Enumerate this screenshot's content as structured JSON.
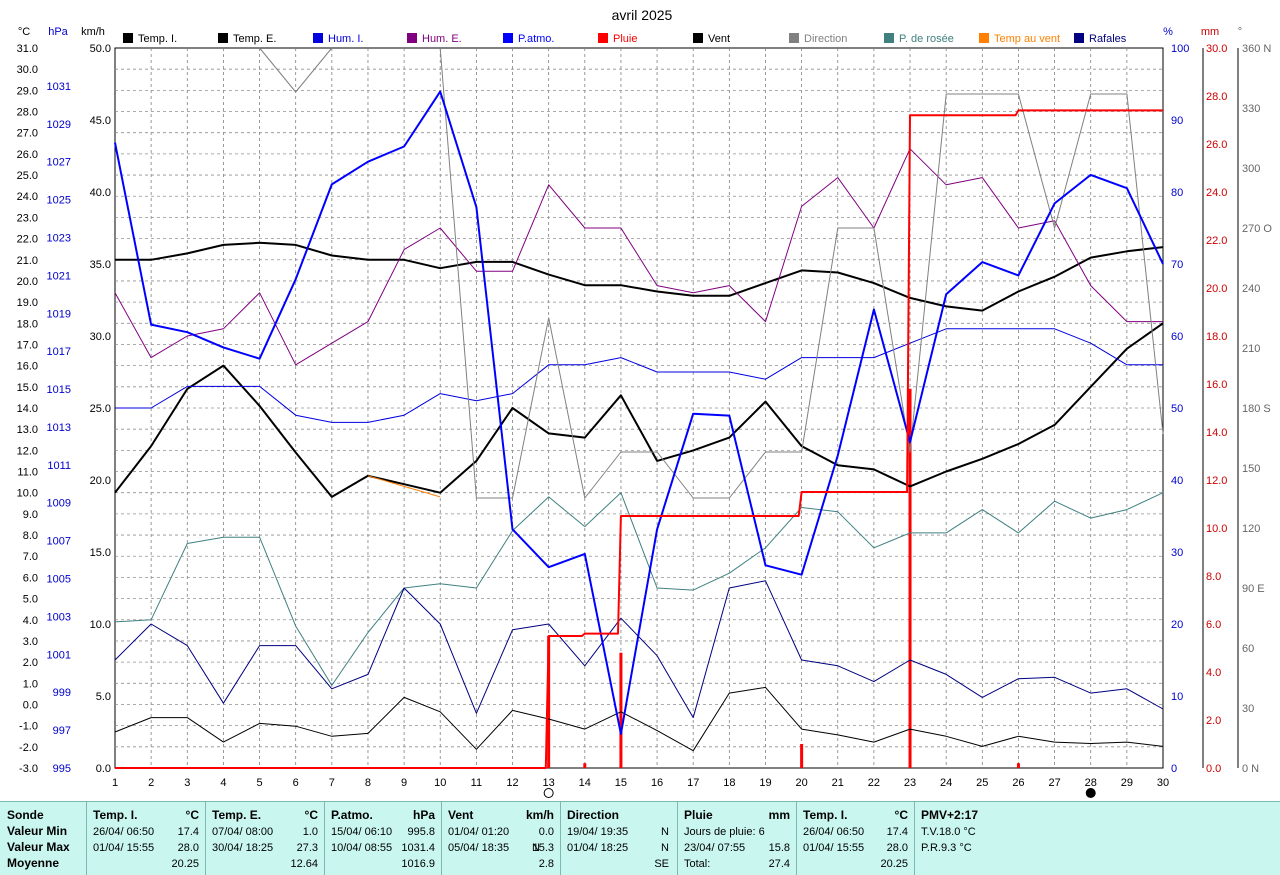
{
  "chart_data": {
    "type": "line",
    "title": "avril 2025",
    "x": [
      1,
      2,
      3,
      4,
      5,
      6,
      7,
      8,
      9,
      10,
      11,
      12,
      13,
      14,
      15,
      16,
      17,
      18,
      19,
      20,
      21,
      22,
      23,
      24,
      25,
      26,
      27,
      28,
      29,
      30
    ],
    "axes": {
      "temp": {
        "unit": "°C",
        "range": [
          -3.0,
          31.0
        ],
        "ticks": [
          "31.0",
          "30.0",
          "29.0",
          "28.0",
          "27.0",
          "26.0",
          "25.0",
          "24.0",
          "23.0",
          "22.0",
          "21.0",
          "20.0",
          "19.0",
          "18.0",
          "17.0",
          "16.0",
          "15.0",
          "14.0",
          "13.0",
          "12.0",
          "11.0",
          "10.0",
          "9.0",
          "8.0",
          "7.0",
          "6.0",
          "5.0",
          "4.0",
          "3.0",
          "2.0",
          "1.0",
          "0.0",
          "-1.0",
          "-2.0",
          "-3.0"
        ]
      },
      "pressure": {
        "unit": "hPa",
        "range": [
          995,
          1033
        ],
        "ticks": [
          "1031",
          "1029",
          "1027",
          "1025",
          "1023",
          "1021",
          "1019",
          "1017",
          "1015",
          "1013",
          "1011",
          "1009",
          "1007",
          "1005",
          "1003",
          "1001",
          "999",
          "997",
          "995"
        ]
      },
      "wind": {
        "unit": "km/h",
        "range": [
          0,
          50
        ],
        "ticks": [
          "50.0",
          "45.0",
          "40.0",
          "35.0",
          "30.0",
          "25.0",
          "20.0",
          "15.0",
          "10.0",
          "5.0",
          "0.0"
        ]
      },
      "humidity": {
        "unit": "%",
        "range": [
          0,
          100
        ],
        "ticks": [
          "100",
          "90",
          "80",
          "70",
          "60",
          "50",
          "40",
          "30",
          "20",
          "10",
          "0"
        ]
      },
      "rain": {
        "unit": "mm",
        "range": [
          0,
          30
        ],
        "ticks": [
          "30.0",
          "28.0",
          "26.0",
          "24.0",
          "22.0",
          "20.0",
          "18.0",
          "16.0",
          "14.0",
          "12.0",
          "10.0",
          "8.0",
          "6.0",
          "4.0",
          "2.0",
          "0.0"
        ]
      },
      "direction": {
        "unit": "°",
        "range": [
          0,
          360
        ],
        "ticks": [
          "360 N",
          "330",
          "300",
          "270 O",
          "240",
          "210",
          "180 S",
          "150",
          "120",
          "90 E",
          "60",
          "30",
          "0  N"
        ]
      }
    },
    "legend": [
      {
        "name": "Temp. I.",
        "color": "#000000"
      },
      {
        "name": "Temp. E.",
        "color": "#000000"
      },
      {
        "name": "Hum. I.",
        "color": "#0000e0"
      },
      {
        "name": "Hum. E.",
        "color": "#800080"
      },
      {
        "name": "P.atmo.",
        "color": "#0000ff"
      },
      {
        "name": "Pluie",
        "color": "#ff0000"
      },
      {
        "name": "Vent",
        "color": "#000000"
      },
      {
        "name": "Direction",
        "color": "#808080"
      },
      {
        "name": "P. de rosée",
        "color": "#408080"
      },
      {
        "name": "Temp au vent",
        "color": "#ff8000"
      },
      {
        "name": "Rafales",
        "color": "#000080"
      }
    ],
    "series": [
      {
        "name": "Temp. I.",
        "axis": "temp",
        "color": "#000000",
        "width": 2,
        "values": [
          21.0,
          21.0,
          21.3,
          21.7,
          21.8,
          21.7,
          21.2,
          21.0,
          21.0,
          20.6,
          20.9,
          20.9,
          20.3,
          19.8,
          19.8,
          19.5,
          19.3,
          19.3,
          19.9,
          20.5,
          20.4,
          19.9,
          19.2,
          18.8,
          18.6,
          19.5,
          20.2,
          21.1,
          21.4,
          21.6
        ]
      },
      {
        "name": "Temp. E.",
        "axis": "temp",
        "color": "#000000",
        "width": 2,
        "values": [
          10.0,
          12.2,
          14.9,
          16.0,
          14.1,
          11.9,
          9.8,
          10.8,
          10.4,
          10.0,
          11.5,
          14.0,
          12.8,
          12.6,
          14.6,
          11.5,
          12.0,
          12.6,
          14.3,
          12.2,
          11.3,
          11.1,
          10.3,
          11.0,
          11.6,
          12.3,
          13.2,
          15.0,
          16.8,
          18.0
        ]
      },
      {
        "name": "Hum. E.",
        "axis": "humidity",
        "color": "#800080",
        "width": 1,
        "values": [
          66,
          57,
          60,
          61,
          66,
          56,
          59,
          62,
          72,
          75,
          69,
          69,
          81,
          75,
          75,
          67,
          66,
          67,
          62,
          78,
          82,
          75,
          86,
          81,
          82,
          75,
          76,
          67,
          62,
          62
        ]
      },
      {
        "name": "Hum. I.",
        "axis": "humidity",
        "color": "#0000e0",
        "width": 1,
        "values": [
          50,
          50,
          53,
          53,
          53,
          49,
          48,
          48,
          49,
          52,
          51,
          52,
          56,
          56,
          57,
          55,
          55,
          55,
          54,
          57,
          57,
          57,
          59,
          61,
          61,
          61,
          61,
          59,
          56,
          56
        ]
      },
      {
        "name": "P. de rosée",
        "axis": "temp",
        "color": "#408080",
        "width": 1,
        "values": [
          3.9,
          4.0,
          7.6,
          7.9,
          7.9,
          3.7,
          0.9,
          3.4,
          5.5,
          5.7,
          5.5,
          8.2,
          9.8,
          8.4,
          10.0,
          5.5,
          5.4,
          6.2,
          7.4,
          9.3,
          9.1,
          7.4,
          8.1,
          8.1,
          9.2,
          8.1,
          9.6,
          8.8,
          9.2,
          10.0
        ]
      },
      {
        "name": "Temp au vent",
        "axis": "temp",
        "color": "#ff8000",
        "width": 1,
        "values": [
          null,
          null,
          null,
          null,
          null,
          null,
          null,
          10.8,
          10.3,
          9.8,
          null,
          null,
          null,
          null,
          null,
          null,
          null,
          null,
          null,
          null,
          null,
          null,
          null,
          null,
          null,
          null,
          null,
          null,
          null,
          null
        ]
      },
      {
        "name": "Direction",
        "axis": "direction",
        "color": "#808080",
        "width": 1,
        "values": [
          null,
          null,
          null,
          null,
          360,
          338,
          360,
          null,
          null,
          360,
          135,
          135,
          225,
          135,
          158,
          158,
          135,
          135,
          158,
          158,
          270,
          270,
          158,
          337,
          337,
          337,
          270,
          337,
          337,
          167
        ]
      },
      {
        "name": "Rafales",
        "axis": "wind",
        "color": "#000080",
        "width": 1,
        "values": [
          7.5,
          10.0,
          8.5,
          4.5,
          8.5,
          8.5,
          5.5,
          6.5,
          12.5,
          10.0,
          3.8,
          9.6,
          10.0,
          7.1,
          10.4,
          7.8,
          3.5,
          12.5,
          13.0,
          7.5,
          7.1,
          6.0,
          7.5,
          6.5,
          4.9,
          6.2,
          6.3,
          5.2,
          5.5,
          4.1
        ]
      },
      {
        "name": "Vent",
        "axis": "wind",
        "color": "#000000",
        "width": 1,
        "values": [
          2.5,
          3.5,
          3.5,
          1.8,
          3.1,
          2.9,
          2.2,
          2.4,
          4.9,
          3.9,
          1.3,
          4.0,
          3.4,
          2.7,
          3.9,
          2.6,
          1.2,
          5.2,
          5.6,
          2.7,
          2.3,
          1.8,
          2.7,
          2.2,
          1.5,
          2.2,
          1.8,
          1.7,
          1.8,
          1.5
        ]
      },
      {
        "name": "P.atmo.",
        "axis": "pressure",
        "color": "#0000ff",
        "width": 2,
        "values": [
          1028,
          1018.4,
          1018,
          1017.2,
          1016.6,
          1020.8,
          1025.8,
          1027,
          1027.8,
          1030.7,
          1024.6,
          1007.6,
          1005.6,
          1006.3,
          996.8,
          1007.6,
          1013.7,
          1013.6,
          1005.7,
          1005.2,
          1011.5,
          1019.2,
          1012.2,
          1020.0,
          1021.7,
          1021,
          1024.8,
          1026.3,
          1025.6,
          1021.6
        ]
      },
      {
        "name": "Pluie",
        "axis": "rain",
        "color": "#ff0000",
        "width": 2,
        "step": true,
        "values": [
          0,
          0,
          0,
          0,
          0,
          0,
          0,
          0,
          0,
          0,
          0,
          0,
          5.5,
          5.6,
          10.5,
          10.5,
          10.5,
          10.5,
          10.5,
          11.5,
          11.5,
          11.5,
          27.2,
          27.2,
          27.2,
          27.4,
          27.4,
          27.4,
          27.4,
          27.4
        ]
      }
    ],
    "rain_daily": [
      {
        "day": 13,
        "value": 5.5
      },
      {
        "day": 14,
        "value": 0.2
      },
      {
        "day": 15,
        "value": 4.8
      },
      {
        "day": 20,
        "value": 1.0
      },
      {
        "day": 23,
        "value": 15.8
      },
      {
        "day": 26,
        "value": 0.2
      }
    ],
    "moon_markers": [
      {
        "day": 13,
        "phase": "full"
      },
      {
        "day": 28,
        "phase": "new"
      }
    ]
  },
  "stats": {
    "labels": {
      "sonde": "Sonde",
      "min": "Valeur Min",
      "max": "Valeur Max",
      "moy": "Moyenne"
    },
    "temp_i": {
      "header": "Temp. I.",
      "unit": "°C",
      "min_date": "26/04/  06:50",
      "min_val": "17.4",
      "max_date": "01/04/  15:55",
      "max_val": "28.0",
      "avg": "20.25"
    },
    "temp_e": {
      "header": "Temp. E.",
      "unit": "°C",
      "min_date": "07/04/  08:00",
      "min_val": "1.0",
      "max_date": "30/04/  18:25",
      "max_val": "27.3",
      "avg": "12.64"
    },
    "patmo": {
      "header": "P.atmo.",
      "unit": "hPa",
      "min_date": "15/04/  06:10",
      "min_val": "995.8",
      "max_date": "10/04/  08:55",
      "max_val": "1031.4",
      "avg": "1016.9"
    },
    "vent": {
      "header": "Vent",
      "unit": "km/h",
      "min_date": "01/04/  01:20",
      "min_val": "0.0",
      "max_date": "05/04/  18:35",
      "max_dir": "N",
      "max_val": "15.3",
      "avg": "2.8"
    },
    "direction": {
      "header": "Direction",
      "min_date": "19/04/  19:35",
      "min_val": "N",
      "max_date": "01/04/  18:25",
      "max_val": "N",
      "avg": "SE"
    },
    "pluie": {
      "header": "Pluie",
      "unit": "mm",
      "days_label": "Jours de pluie: 6",
      "max_date": "23/04/  07:55",
      "max_val": "15.8",
      "total_label": "Total:",
      "total_val": "27.4"
    },
    "temp_i2": {
      "header": "Temp. I.",
      "unit": "°C",
      "min_date": "26/04/  06:50",
      "min_val": "17.4",
      "max_date": "01/04/  15:55",
      "max_val": "28.0",
      "avg": "20.25"
    },
    "pmv": {
      "header": "PMV+2:17",
      "tv": "T.V.18.0 °C",
      "pr": "P.R.9.3 °C"
    }
  }
}
